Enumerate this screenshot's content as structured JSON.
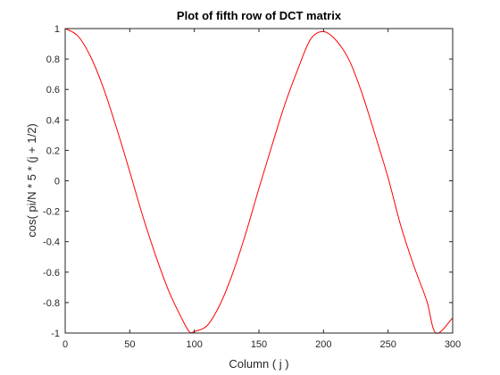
{
  "chart_data": {
    "type": "line",
    "title": "Plot of fifth row of DCT matrix",
    "xlabel": "Column ( j )",
    "ylabel": "cos( pi/N * 5 * (j + 1/2)",
    "xlim": [
      0,
      300
    ],
    "ylim": [
      -1,
      1
    ],
    "xticks": [
      0,
      50,
      100,
      150,
      200,
      250,
      300
    ],
    "yticks": [
      -1,
      -0.8,
      -0.6,
      -0.4,
      -0.2,
      0,
      0.2,
      0.4,
      0.6,
      0.8,
      1
    ],
    "xtick_labels": [
      "0",
      "50",
      "100",
      "150",
      "200",
      "250",
      "300"
    ],
    "ytick_labels": [
      "-1",
      "-0.8",
      "-0.6",
      "-0.4",
      "-0.2",
      "0",
      "0.2",
      "0.4",
      "0.6",
      "0.8",
      "1"
    ],
    "grid": false,
    "box": true,
    "series": [
      {
        "color": "#ff0000",
        "x": [
          0,
          10,
          20,
          30,
          40,
          50,
          60,
          70,
          80,
          90,
          96,
          100,
          110,
          120,
          130,
          140,
          150,
          160,
          170,
          180,
          190,
          200,
          210,
          220,
          230,
          240,
          250,
          260,
          270,
          280,
          287,
          300
        ],
        "y": [
          1.0,
          0.95,
          0.81,
          0.6,
          0.34,
          0.06,
          -0.23,
          -0.49,
          -0.72,
          -0.9,
          -0.99,
          -0.99,
          -0.95,
          -0.81,
          -0.6,
          -0.34,
          -0.05,
          0.23,
          0.5,
          0.73,
          0.93,
          0.98,
          0.92,
          0.79,
          0.57,
          0.3,
          0.02,
          -0.3,
          -0.56,
          -0.79,
          -1.0,
          -0.9
        ]
      }
    ]
  }
}
